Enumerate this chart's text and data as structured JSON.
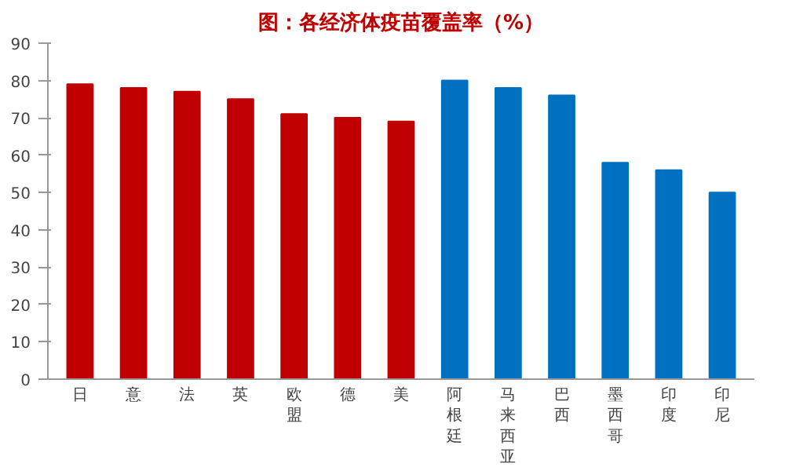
{
  "chart_data": {
    "type": "bar",
    "title": "图：各经济体疫苗覆盖率（%）",
    "categories": [
      "日",
      "意",
      "法",
      "英",
      "欧盟",
      "德",
      "美",
      "阿根廷",
      "马来西亚",
      "巴西",
      "墨西哥",
      "印度",
      "印尼"
    ],
    "values": [
      79,
      78,
      77,
      75,
      71,
      70,
      69,
      80,
      78,
      76,
      58,
      56,
      50
    ],
    "colors": [
      "#c00000",
      "#c00000",
      "#c00000",
      "#c00000",
      "#c00000",
      "#c00000",
      "#c00000",
      "#0070c0",
      "#0070c0",
      "#0070c0",
      "#0070c0",
      "#0070c0",
      "#0070c0"
    ],
    "ylim": [
      0,
      90
    ],
    "yticks": [
      0,
      10,
      20,
      30,
      40,
      50,
      60,
      70,
      80,
      90
    ],
    "grid": false
  }
}
